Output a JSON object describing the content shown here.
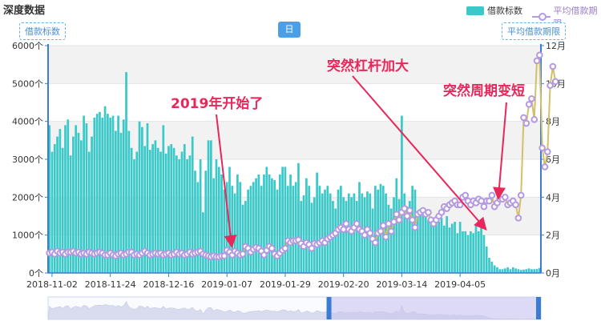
{
  "title": "深度数据",
  "legend": {
    "bars": "借款标数",
    "line": "平均借款期限"
  },
  "left_axis_name": "借款标数",
  "right_axis_name": "平均借款期限",
  "day_button": "日",
  "annotations": [
    "2019年开始了",
    "突然杠杆加大",
    "突然周期变短"
  ],
  "colors": {
    "bar": "#3bc8c8",
    "line": "#d2c06a",
    "point": "#b49ae0",
    "annot": "#e8275a"
  },
  "zoom": {
    "start": 0.0,
    "end": 0.57
  },
  "chart_data": {
    "type": "bar",
    "x_tick_labels": [
      "2018-11-02",
      "2018-11-24",
      "2018-12-16",
      "2019-01-07",
      "2019-01-29",
      "2019-02-20",
      "2019-03-14",
      "2019-04-05"
    ],
    "y_left_ticks": [
      "0个",
      "1000个",
      "2000个",
      "3000个",
      "4000个",
      "5000个",
      "6000个"
    ],
    "y_right_ticks": [
      "0月",
      "2月",
      "4月",
      "6月",
      "8月",
      "10月",
      "12月"
    ],
    "ylim_left": [
      0,
      6000
    ],
    "ylim_right": [
      0,
      12
    ],
    "start_date": "2018-11-01",
    "series": [
      {
        "name": "借款标数",
        "axis": "left",
        "values": [
          3900,
          3200,
          3400,
          3600,
          3800,
          3300,
          3900,
          4050,
          3100,
          3600,
          3900,
          3700,
          3500,
          4150,
          3950,
          3200,
          3600,
          4100,
          4200,
          4250,
          4100,
          4400,
          4200,
          4100,
          4150,
          3750,
          4150,
          3700,
          4050,
          5300,
          3750,
          3300,
          3000,
          3200,
          4000,
          3850,
          3350,
          3950,
          3250,
          3400,
          3500,
          3300,
          3200,
          3900,
          3150,
          3350,
          3400,
          3300,
          3100,
          3000,
          3200,
          3400,
          3000,
          3100,
          3600,
          2700,
          2400,
          3000,
          1600,
          2700,
          3500,
          3500,
          2500,
          3000,
          2800,
          2600,
          2200,
          2400,
          2800,
          2300,
          2100,
          2600,
          2400,
          1800,
          1900,
          2200,
          2300,
          2400,
          2500,
          2600,
          2300,
          2600,
          2800,
          2600,
          2500,
          2450,
          2200,
          2600,
          2800,
          2800,
          2300,
          2600,
          2300,
          2400,
          2900,
          1900,
          2050,
          2500,
          2300,
          1850,
          2000,
          2650,
          2300,
          2100,
          2200,
          2300,
          2100,
          1900,
          1700,
          2200,
          2300,
          2000,
          1900,
          2100,
          2000,
          2100,
          1900,
          2400,
          2100,
          2000,
          2150,
          2100,
          1700,
          2300,
          2200,
          2350,
          2300,
          2100,
          1800,
          1700,
          2000,
          2500,
          1950,
          4150,
          2100,
          1750,
          1900,
          2300,
          2200,
          1600,
          1650,
          1650,
          1600,
          1400,
          1400,
          1250,
          1500,
          1350,
          1450,
          1250,
          1500,
          1200,
          1300,
          1350,
          1050,
          1350,
          1100,
          1100,
          1000,
          1100,
          1050,
          1300,
          1100,
          1200,
          1000,
          700,
          400,
          300,
          200,
          150,
          100,
          100,
          120,
          150,
          100,
          150,
          120,
          100,
          80,
          90,
          100,
          120,
          100,
          100,
          110,
          130
        ],
        "highlights": []
      },
      {
        "name": "平均借款期限",
        "axis": "right",
        "values": [
          1.05,
          1.1,
          1.0,
          1.15,
          1.05,
          1.1,
          1.0,
          1.1,
          1.1,
          1.15,
          1.05,
          1.1,
          1.0,
          1.05,
          1.0,
          1.1,
          1.05,
          1.0,
          1.05,
          1.1,
          1.05,
          0.95,
          0.95,
          1.05,
          0.95,
          0.9,
          1.0,
          1.05,
          0.95,
          1.0,
          1.1,
          1.1,
          0.95,
          1.0,
          0.95,
          1.05,
          1.15,
          1.05,
          0.95,
          1.0,
          1.05,
          1.0,
          1.05,
          0.95,
          1.0,
          1.05,
          0.95,
          1.0,
          1.1,
          1.0,
          1.05,
          0.95,
          1.0,
          1.1,
          1.0,
          1.05,
          1.1,
          1.15,
          1.0,
          0.95,
          0.9,
          0.85,
          0.9,
          0.85,
          0.85,
          0.9,
          0.9,
          1.2,
          1.1,
          0.95,
          1.15,
          1.05,
          0.95,
          1.0,
          1.4,
          1.3,
          1.1,
          1.25,
          1.35,
          1.3,
          1.15,
          0.95,
          1.2,
          1.4,
          1.3,
          1.0,
          0.9,
          1.05,
          1.2,
          1.3,
          1.7,
          1.6,
          1.7,
          1.7,
          1.75,
          1.55,
          1.4,
          1.6,
          1.5,
          1.3,
          1.55,
          1.5,
          1.6,
          1.7,
          1.6,
          1.8,
          1.9,
          2.0,
          2.1,
          2.3,
          2.4,
          2.3,
          2.6,
          2.3,
          2.2,
          2.4,
          2.6,
          2.3,
          2.2,
          2.0,
          2.3,
          2.1,
          1.8,
          1.6,
          2.1,
          2.2,
          2.5,
          1.9,
          2.6,
          2.2,
          2.7,
          3.1,
          2.8,
          3.2,
          3.4,
          3.0,
          3.3,
          2.8,
          2.4,
          3.1,
          3.2,
          3.3,
          3.1,
          3.2,
          2.8,
          2.6,
          2.8,
          3.0,
          3.2,
          3.5,
          3.4,
          3.6,
          3.7,
          3.8,
          3.6,
          3.6,
          4.0,
          4.1,
          3.8,
          3.6,
          3.8,
          3.7,
          3.9,
          3.8,
          3.5,
          3.8,
          3.8,
          4.1,
          3.5,
          3.7,
          3.9,
          3.9,
          4.0,
          3.6,
          3.7,
          3.8,
          3.6,
          2.9,
          4.1,
          8.2,
          7.9,
          8.9,
          9.2,
          8.1,
          11.2,
          11.5,
          6.6,
          5.6,
          6.4,
          9.9,
          10.9,
          10.1
        ],
        "highlights": []
      }
    ]
  }
}
